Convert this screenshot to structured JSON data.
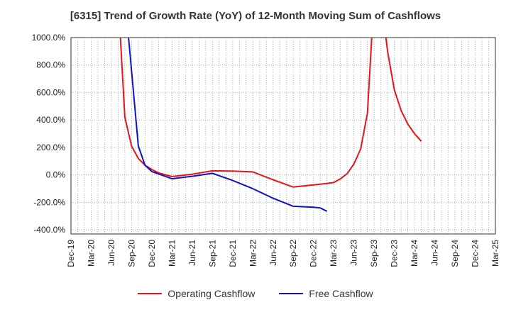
{
  "chart_data": {
    "type": "line",
    "title": "[6315]  Trend of Growth Rate (YoY) of 12-Month Moving Sum of Cashflows",
    "xlabel": "",
    "ylabel": "",
    "x_ticks": [
      "Dec-19",
      "Mar-20",
      "Jun-20",
      "Sep-20",
      "Dec-20",
      "Mar-21",
      "Jun-21",
      "Sep-21",
      "Dec-21",
      "Mar-22",
      "Jun-22",
      "Sep-22",
      "Dec-22",
      "Mar-23",
      "Jun-23",
      "Sep-23",
      "Dec-23",
      "Mar-24",
      "Jun-24",
      "Sep-24",
      "Dec-24",
      "Mar-25"
    ],
    "y_ticks": [
      "1000.0%",
      "800.0%",
      "600.0%",
      "400.0%",
      "200.0%",
      "0.0%",
      "-200.0%",
      "-400.0%"
    ],
    "ylim": [
      -430,
      1000
    ],
    "grid": true,
    "legend_position": "bottom",
    "series": [
      {
        "name": "Operating Cashflow",
        "color": "#e8141a",
        "points": [
          {
            "x": "Jul-20",
            "y": 1300
          },
          {
            "x": "Aug-20",
            "y": 420
          },
          {
            "x": "Sep-20",
            "y": 210
          },
          {
            "x": "Oct-20",
            "y": 120
          },
          {
            "x": "Nov-20",
            "y": 70
          },
          {
            "x": "Dec-20",
            "y": 40
          },
          {
            "x": "Jan-21",
            "y": 15
          },
          {
            "x": "Mar-21",
            "y": -12
          },
          {
            "x": "Jun-21",
            "y": 5
          },
          {
            "x": "Sep-21",
            "y": 30
          },
          {
            "x": "Dec-21",
            "y": 28
          },
          {
            "x": "Mar-22",
            "y": 22
          },
          {
            "x": "Jun-22",
            "y": -35
          },
          {
            "x": "Sep-22",
            "y": -88
          },
          {
            "x": "Dec-22",
            "y": -72
          },
          {
            "x": "Feb-23",
            "y": -62
          },
          {
            "x": "Mar-23",
            "y": -55
          },
          {
            "x": "Apr-23",
            "y": -28
          },
          {
            "x": "May-23",
            "y": 10
          },
          {
            "x": "Jun-23",
            "y": 80
          },
          {
            "x": "Jul-23",
            "y": 190
          },
          {
            "x": "Aug-23",
            "y": 450
          },
          {
            "x": "Sep-23",
            "y": 1300
          },
          {
            "x": "Oct-23",
            "y": 1300
          },
          {
            "x": "Nov-23",
            "y": 900
          },
          {
            "x": "Dec-23",
            "y": 620
          },
          {
            "x": "Jan-24",
            "y": 470
          },
          {
            "x": "Feb-24",
            "y": 370
          },
          {
            "x": "Mar-24",
            "y": 300
          },
          {
            "x": "Apr-24",
            "y": 245
          }
        ]
      },
      {
        "name": "Free Cashflow",
        "color": "#1111cc",
        "points": [
          {
            "x": "Aug-20",
            "y": 1300
          },
          {
            "x": "Oct-20",
            "y": 210
          },
          {
            "x": "Nov-20",
            "y": 70
          },
          {
            "x": "Dec-20",
            "y": 25
          },
          {
            "x": "Mar-21",
            "y": -28
          },
          {
            "x": "Jun-21",
            "y": -10
          },
          {
            "x": "Sep-21",
            "y": 12
          },
          {
            "x": "Dec-21",
            "y": -40
          },
          {
            "x": "Mar-22",
            "y": -100
          },
          {
            "x": "Jun-22",
            "y": -170
          },
          {
            "x": "Sep-22",
            "y": -228
          },
          {
            "x": "Dec-22",
            "y": -235
          },
          {
            "x": "Jan-23",
            "y": -240
          },
          {
            "x": "Feb-23",
            "y": -265
          }
        ]
      }
    ]
  }
}
